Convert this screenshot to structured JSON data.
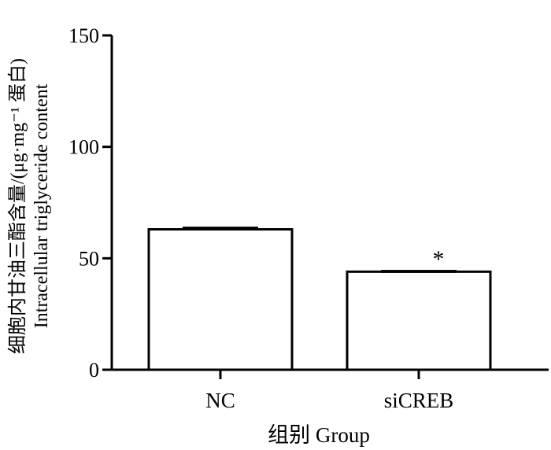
{
  "chart_data": {
    "type": "bar",
    "categories": [
      "NC",
      "siCREB"
    ],
    "values": [
      63,
      44
    ],
    "errors": [
      1.2,
      0.8
    ],
    "significance": [
      "",
      "*"
    ],
    "ylim": [
      0,
      150
    ],
    "yticks": [
      "0",
      "50",
      "100",
      "150"
    ],
    "ylabel_line1": "细胞内甘油三酯含量/(μg·mg⁻¹ 蛋白)",
    "ylabel_line2": "Intracellular triglyceride content",
    "xlabel": "组别 Group",
    "grid": false,
    "legend": "none"
  }
}
